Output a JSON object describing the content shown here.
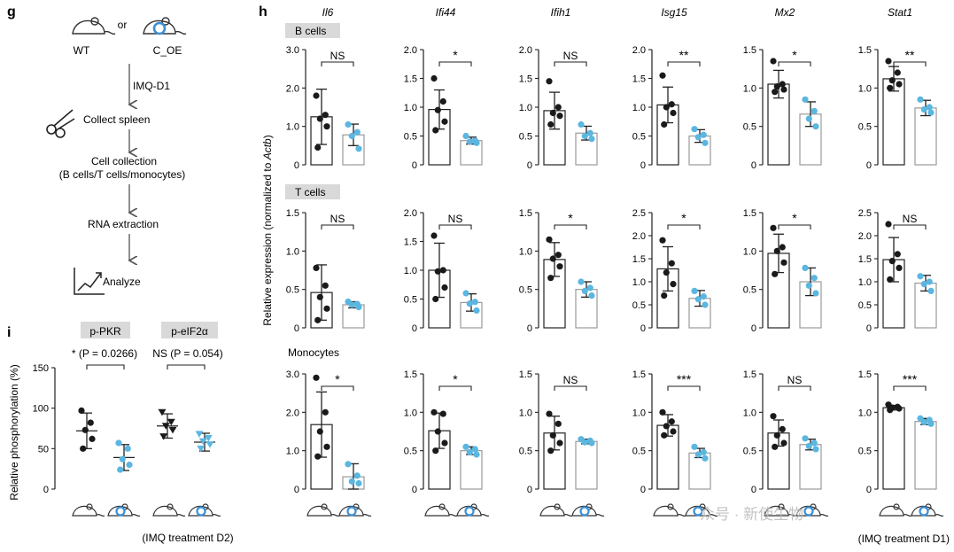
{
  "panel_labels": {
    "g": "g",
    "h": "h",
    "i": "i"
  },
  "colors": {
    "wt": "#1a1a1a",
    "coe": "#5bb6e0",
    "bar_coe_stroke": "#9a9a9a",
    "label_bg": "#d9d9d9",
    "arrow": "#555555",
    "mouse_ring": "#3a8fd6"
  },
  "workflow": {
    "wt_label": "WT",
    "or_label": "or",
    "coe_label": "C_OE",
    "steps": [
      "IMQ-D1",
      "Collect spleen",
      "Cell collection",
      "(B cells/T cells/monocytes)",
      "RNA extraction",
      "Analyze"
    ]
  },
  "panel_h": {
    "y_label": "Relative expression (normalized to ",
    "y_label_italic": "Actb",
    "y_label_end": ")",
    "footer": "(IMQ treatment D1)",
    "watermark": "众号 · 新使生物",
    "genes": [
      "Il6",
      "Ifi44",
      "Ifih1",
      "Isg15",
      "Mx2",
      "Stat1"
    ],
    "row_labels": [
      "B cells",
      "T cells",
      "Monocytes"
    ]
  },
  "panel_i": {
    "y_label": "Relative phosphorylation (%)",
    "footer": "(IMQ treatment D2)",
    "groups": [
      {
        "name": "p-PKR",
        "stat": "* (P = 0.0266)"
      },
      {
        "name": "p-eIF2α",
        "stat": "NS (P = 0.054)"
      }
    ]
  },
  "chart_data": [
    {
      "type": "scatter",
      "panel": "h",
      "row": "B cells",
      "gene": "Il6",
      "ylim": [
        0,
        3.0
      ],
      "yticks": [
        "0",
        "1.0",
        "2.0",
        "3.0"
      ],
      "sig": "NS",
      "series": [
        {
          "name": "WT",
          "mean": 1.25,
          "sd": 0.72,
          "points": [
            1.8,
            1.3,
            1.2,
            1.0,
            0.45
          ]
        },
        {
          "name": "C_OE",
          "mean": 0.78,
          "sd": 0.28,
          "points": [
            1.05,
            0.85,
            0.75,
            0.42
          ]
        }
      ]
    },
    {
      "type": "scatter",
      "panel": "h",
      "row": "B cells",
      "gene": "Ifi44",
      "ylim": [
        0,
        2.0
      ],
      "yticks": [
        "0",
        "0.5",
        "1.0",
        "1.5",
        "2.0"
      ],
      "sig": "*",
      "series": [
        {
          "name": "WT",
          "mean": 0.96,
          "sd": 0.34,
          "points": [
            1.5,
            1.1,
            0.95,
            0.75,
            0.6
          ]
        },
        {
          "name": "C_OE",
          "mean": 0.42,
          "sd": 0.06,
          "points": [
            0.5,
            0.42,
            0.4,
            0.38
          ]
        }
      ]
    },
    {
      "type": "scatter",
      "panel": "h",
      "row": "B cells",
      "gene": "Ifih1",
      "ylim": [
        0,
        2.0
      ],
      "yticks": [
        "0",
        "0.5",
        "1.0",
        "1.5",
        "2.0"
      ],
      "sig": "NS",
      "series": [
        {
          "name": "WT",
          "mean": 0.94,
          "sd": 0.32,
          "points": [
            1.45,
            1.0,
            0.9,
            0.85,
            0.7
          ]
        },
        {
          "name": "C_OE",
          "mean": 0.55,
          "sd": 0.12,
          "points": [
            0.7,
            0.55,
            0.5,
            0.45
          ]
        }
      ]
    },
    {
      "type": "scatter",
      "panel": "h",
      "row": "B cells",
      "gene": "Isg15",
      "ylim": [
        0,
        2.0
      ],
      "yticks": [
        "0",
        "0.5",
        "1.0",
        "1.5",
        "2.0"
      ],
      "sig": "**",
      "series": [
        {
          "name": "WT",
          "mean": 1.04,
          "sd": 0.31,
          "points": [
            1.55,
            1.05,
            1.0,
            0.9,
            0.7
          ]
        },
        {
          "name": "C_OE",
          "mean": 0.5,
          "sd": 0.11,
          "points": [
            0.62,
            0.52,
            0.48,
            0.38
          ]
        }
      ]
    },
    {
      "type": "scatter",
      "panel": "h",
      "row": "B cells",
      "gene": "Mx2",
      "ylim": [
        0,
        1.5
      ],
      "yticks": [
        "0",
        "0.5",
        "1.0",
        "1.5"
      ],
      "sig": "*",
      "series": [
        {
          "name": "WT",
          "mean": 1.05,
          "sd": 0.18,
          "points": [
            1.35,
            1.05,
            1.02,
            0.98,
            0.95
          ]
        },
        {
          "name": "C_OE",
          "mean": 0.66,
          "sd": 0.16,
          "points": [
            0.85,
            0.7,
            0.6,
            0.5
          ]
        }
      ]
    },
    {
      "type": "scatter",
      "panel": "h",
      "row": "B cells",
      "gene": "Stat1",
      "ylim": [
        0,
        1.5
      ],
      "yticks": [
        "0",
        "0.5",
        "1.0",
        "1.5"
      ],
      "sig": "**",
      "series": [
        {
          "name": "WT",
          "mean": 1.12,
          "sd": 0.16,
          "points": [
            1.35,
            1.2,
            1.1,
            1.05,
            1.0
          ]
        },
        {
          "name": "C_OE",
          "mean": 0.74,
          "sd": 0.1,
          "points": [
            0.85,
            0.75,
            0.72,
            0.68
          ]
        }
      ]
    },
    {
      "type": "scatter",
      "panel": "h",
      "row": "T cells",
      "gene": "Il6",
      "ylim": [
        0,
        1.5
      ],
      "yticks": [
        "0",
        "0.5",
        "1.0",
        "1.5"
      ],
      "sig": "NS",
      "series": [
        {
          "name": "WT",
          "mean": 0.46,
          "sd": 0.36,
          "points": [
            0.78,
            0.55,
            0.4,
            0.25,
            0.1
          ]
        },
        {
          "name": "C_OE",
          "mean": 0.3,
          "sd": 0.04,
          "points": [
            0.34,
            0.31,
            0.3,
            0.27
          ]
        }
      ]
    },
    {
      "type": "scatter",
      "panel": "h",
      "row": "T cells",
      "gene": "Ifi44",
      "ylim": [
        0,
        2.0
      ],
      "yticks": [
        "0",
        "0.5",
        "1.0",
        "1.5",
        "2.0"
      ],
      "sig": "NS",
      "series": [
        {
          "name": "WT",
          "mean": 1.0,
          "sd": 0.47,
          "points": [
            1.6,
            1.0,
            0.98,
            0.7,
            0.5
          ]
        },
        {
          "name": "C_OE",
          "mean": 0.44,
          "sd": 0.15,
          "points": [
            0.6,
            0.45,
            0.42,
            0.3
          ]
        }
      ]
    },
    {
      "type": "scatter",
      "panel": "h",
      "row": "T cells",
      "gene": "Ifih1",
      "ylim": [
        0,
        1.5
      ],
      "yticks": [
        "0",
        "0.5",
        "1.0",
        "1.5"
      ],
      "sig": "*",
      "series": [
        {
          "name": "WT",
          "mean": 0.89,
          "sd": 0.22,
          "points": [
            1.15,
            0.95,
            0.9,
            0.8,
            0.65
          ]
        },
        {
          "name": "C_OE",
          "mean": 0.5,
          "sd": 0.1,
          "points": [
            0.6,
            0.52,
            0.48,
            0.42
          ]
        }
      ]
    },
    {
      "type": "scatter",
      "panel": "h",
      "row": "T cells",
      "gene": "Isg15",
      "ylim": [
        0,
        2.5
      ],
      "yticks": [
        "0",
        "0.5",
        "1.0",
        "1.5",
        "2.0",
        "2.5"
      ],
      "sig": "*",
      "series": [
        {
          "name": "WT",
          "mean": 1.28,
          "sd": 0.48,
          "points": [
            1.9,
            1.4,
            1.2,
            0.95,
            0.7
          ]
        },
        {
          "name": "C_OE",
          "mean": 0.64,
          "sd": 0.17,
          "points": [
            0.8,
            0.68,
            0.62,
            0.5
          ]
        }
      ]
    },
    {
      "type": "scatter",
      "panel": "h",
      "row": "T cells",
      "gene": "Mx2",
      "ylim": [
        0,
        1.5
      ],
      "yticks": [
        "0",
        "0.5",
        "1.0",
        "1.5"
      ],
      "sig": "*",
      "series": [
        {
          "name": "WT",
          "mean": 0.97,
          "sd": 0.25,
          "points": [
            1.3,
            1.05,
            1.0,
            0.85,
            0.7
          ]
        },
        {
          "name": "C_OE",
          "mean": 0.6,
          "sd": 0.18,
          "points": [
            0.78,
            0.65,
            0.55,
            0.45
          ]
        }
      ]
    },
    {
      "type": "scatter",
      "panel": "h",
      "row": "T cells",
      "gene": "Stat1",
      "ylim": [
        0,
        2.5
      ],
      "yticks": [
        "0",
        "0.5",
        "1.0",
        "1.5",
        "2.0",
        "2.5"
      ],
      "sig": "NS",
      "series": [
        {
          "name": "WT",
          "mean": 1.48,
          "sd": 0.48,
          "points": [
            2.25,
            1.6,
            1.45,
            1.3,
            1.05
          ]
        },
        {
          "name": "C_OE",
          "mean": 0.97,
          "sd": 0.17,
          "points": [
            1.12,
            1.0,
            0.95,
            0.8
          ]
        }
      ]
    },
    {
      "type": "scatter",
      "panel": "h",
      "row": "Monocytes",
      "gene": "Il6",
      "ylim": [
        0,
        3.0
      ],
      "yticks": [
        "0",
        "1.0",
        "2.0",
        "3.0"
      ],
      "sig": "*",
      "series": [
        {
          "name": "WT",
          "mean": 1.68,
          "sd": 0.85,
          "points": [
            2.9,
            2.0,
            1.5,
            1.1,
            0.85
          ]
        },
        {
          "name": "C_OE",
          "mean": 0.32,
          "sd": 0.34,
          "points": [
            0.65,
            0.35,
            0.2,
            0.15
          ]
        }
      ]
    },
    {
      "type": "scatter",
      "panel": "h",
      "row": "Monocytes",
      "gene": "Ifi44",
      "ylim": [
        0,
        1.5
      ],
      "yticks": [
        "0",
        "0.5",
        "1.0",
        "1.5"
      ],
      "sig": "*",
      "series": [
        {
          "name": "WT",
          "mean": 0.76,
          "sd": 0.23,
          "points": [
            1.0,
            0.98,
            0.75,
            0.6,
            0.5
          ]
        },
        {
          "name": "C_OE",
          "mean": 0.5,
          "sd": 0.05,
          "points": [
            0.55,
            0.52,
            0.48,
            0.45
          ]
        }
      ]
    },
    {
      "type": "scatter",
      "panel": "h",
      "row": "Monocytes",
      "gene": "Ifih1",
      "ylim": [
        0,
        1.5
      ],
      "yticks": [
        "0",
        "0.5",
        "1.0",
        "1.5"
      ],
      "sig": "NS",
      "series": [
        {
          "name": "WT",
          "mean": 0.73,
          "sd": 0.22,
          "points": [
            0.98,
            0.85,
            0.7,
            0.6,
            0.5
          ]
        },
        {
          "name": "C_OE",
          "mean": 0.62,
          "sd": 0.03,
          "points": [
            0.65,
            0.63,
            0.61,
            0.6
          ]
        }
      ]
    },
    {
      "type": "scatter",
      "panel": "h",
      "row": "Monocytes",
      "gene": "Isg15",
      "ylim": [
        0,
        1.5
      ],
      "yticks": [
        "0",
        "0.5",
        "1.0",
        "1.5"
      ],
      "sig": "***",
      "series": [
        {
          "name": "WT",
          "mean": 0.83,
          "sd": 0.14,
          "points": [
            1.0,
            0.88,
            0.82,
            0.75,
            0.7
          ]
        },
        {
          "name": "C_OE",
          "mean": 0.47,
          "sd": 0.06,
          "points": [
            0.55,
            0.48,
            0.45,
            0.4
          ]
        }
      ]
    },
    {
      "type": "scatter",
      "panel": "h",
      "row": "Monocytes",
      "gene": "Mx2",
      "ylim": [
        0,
        1.5
      ],
      "yticks": [
        "0",
        "0.5",
        "1.0",
        "1.5"
      ],
      "sig": "NS",
      "series": [
        {
          "name": "WT",
          "mean": 0.73,
          "sd": 0.17,
          "points": [
            0.95,
            0.78,
            0.7,
            0.6,
            0.55
          ]
        },
        {
          "name": "C_OE",
          "mean": 0.58,
          "sd": 0.07,
          "points": [
            0.66,
            0.6,
            0.56,
            0.52
          ]
        }
      ]
    },
    {
      "type": "scatter",
      "panel": "h",
      "row": "Monocytes",
      "gene": "Stat1",
      "ylim": [
        0,
        1.5
      ],
      "yticks": [
        "0",
        "0.5",
        "1.0",
        "1.5"
      ],
      "sig": "***",
      "series": [
        {
          "name": "WT",
          "mean": 1.06,
          "sd": 0.03,
          "points": [
            1.1,
            1.07,
            1.06,
            1.05,
            1.03
          ]
        },
        {
          "name": "C_OE",
          "mean": 0.88,
          "sd": 0.04,
          "points": [
            0.92,
            0.9,
            0.87,
            0.85
          ]
        }
      ]
    },
    {
      "type": "scatter",
      "panel": "i",
      "ylim": [
        0,
        150
      ],
      "yticks": [
        "0",
        "50",
        "100",
        "150"
      ],
      "groups": [
        {
          "name": "p-PKR",
          "series": [
            {
              "name": "WT",
              "mean": 72,
              "sd": 22,
              "points": [
                97,
                82,
                73,
                62,
                50
              ]
            },
            {
              "name": "C_OE",
              "mean": 39,
              "sd": 16,
              "points": [
                57,
                50,
                37,
                30,
                24
              ]
            }
          ]
        },
        {
          "name": "p-eIF2α",
          "series": [
            {
              "name": "WT",
              "mean": 78,
              "sd": 15,
              "points": [
                95,
                83,
                78,
                73,
                65
              ]
            },
            {
              "name": "C_OE",
              "mean": 58,
              "sd": 11,
              "points": [
                68,
                63,
                59,
                55,
                50
              ]
            }
          ]
        }
      ]
    }
  ]
}
